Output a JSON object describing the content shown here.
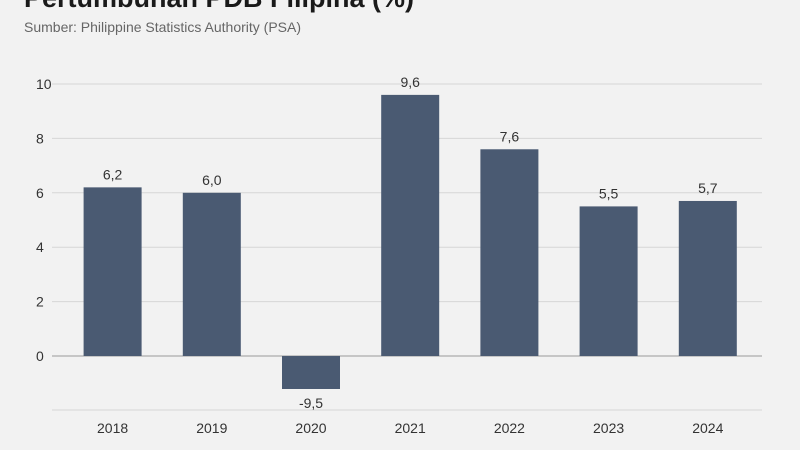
{
  "chart_data": {
    "type": "bar",
    "title": "Pertumbuhan PDB Filipina (%)",
    "subtitle": "Sumber: Philippine Statistics Authority (PSA)",
    "categories": [
      "2018",
      "2019",
      "2020",
      "2021",
      "2022",
      "2023",
      "2024"
    ],
    "values": [
      6.2,
      6.0,
      -9.5,
      9.6,
      7.6,
      5.5,
      5.7
    ],
    "data_labels": [
      "6,2",
      "6,0",
      "-9,5",
      "9,6",
      "7,6",
      "5,5",
      "5,7"
    ],
    "y_ticks": [
      0,
      2,
      4,
      6,
      8,
      10
    ],
    "ylim": [
      -2,
      10
    ],
    "grid": true,
    "bar_color": "#4a5a72"
  }
}
